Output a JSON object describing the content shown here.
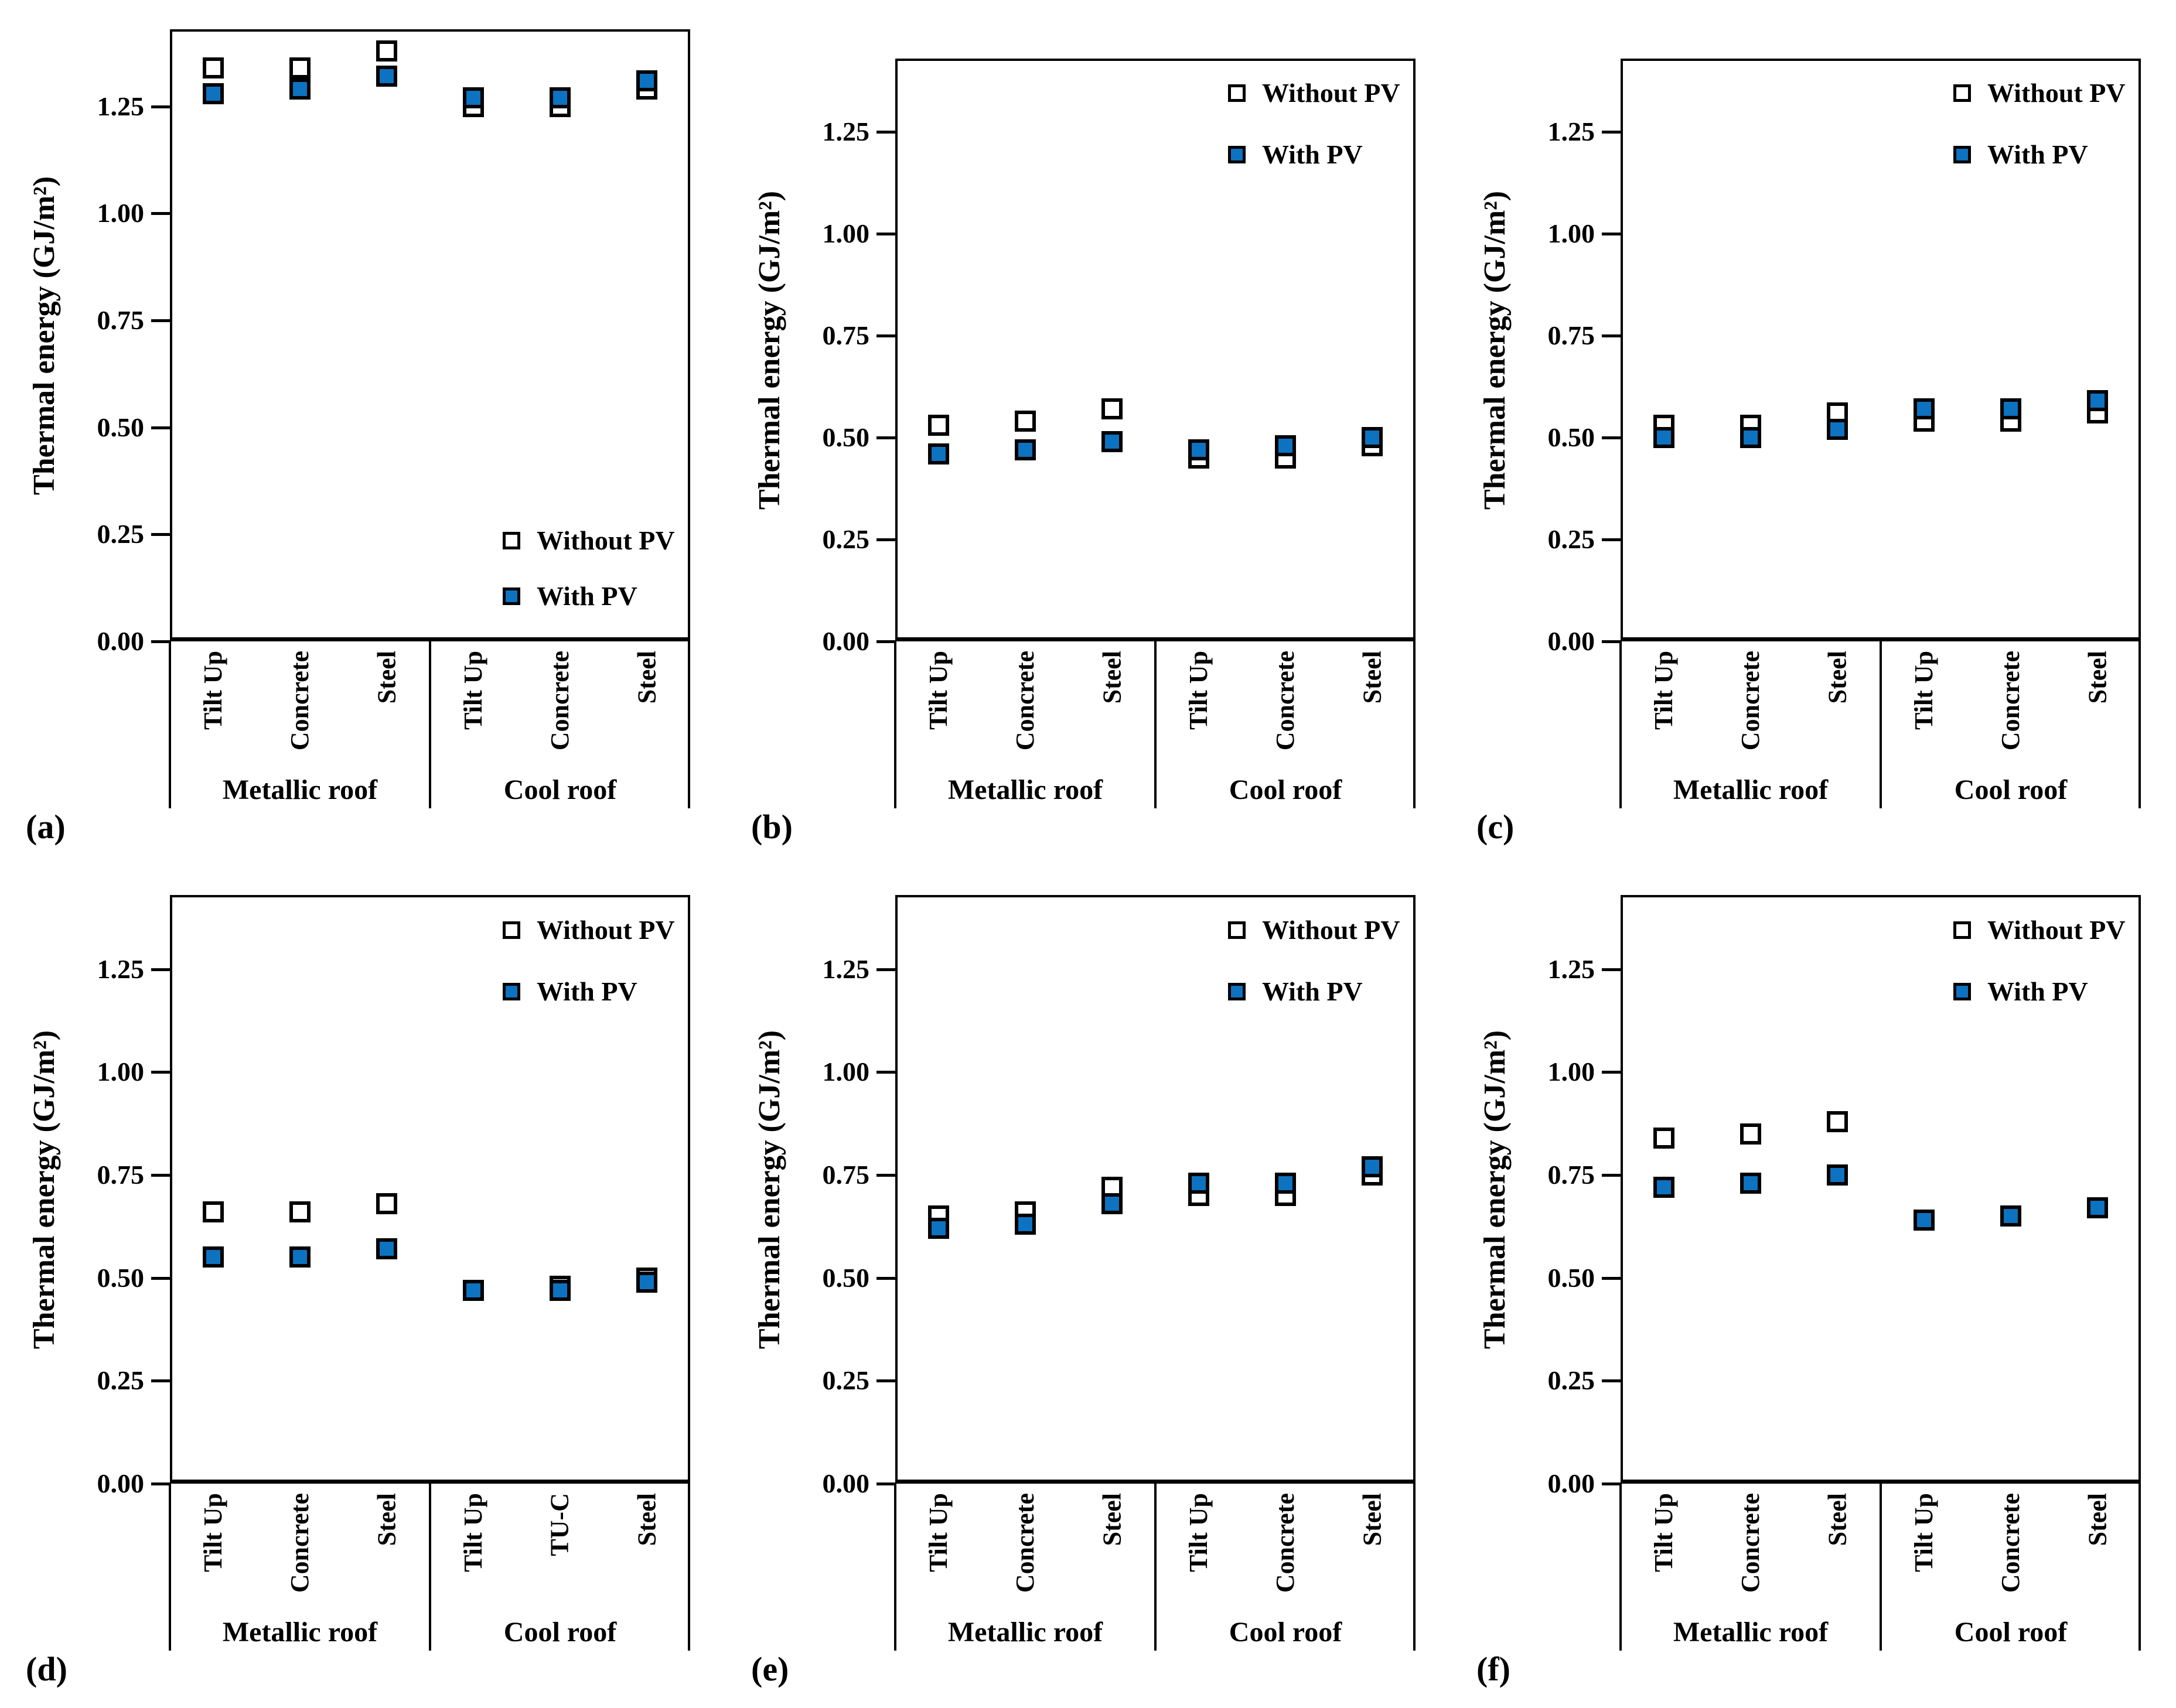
{
  "figure": {
    "y_axis_label": "Thermal energy (GJ/m²)",
    "y_ticks": [
      "0.00",
      "0.25",
      "0.50",
      "0.75",
      "1.00",
      "1.25"
    ],
    "y_tick_values": [
      0,
      0.25,
      0.5,
      0.75,
      1.0,
      1.25
    ],
    "y_max": 1.43,
    "grid": "off",
    "marker_shape": "square",
    "colors": {
      "with_pv_fill": "#0D72C0",
      "without_pv_fill": "#FFFFFF",
      "marker_border": "#000000",
      "axis_color": "#000000",
      "text_color": "#000000",
      "background": "#FFFFFF"
    }
  },
  "chart_data": [
    {
      "id": "a",
      "panel_label": "(a)",
      "type": "scatter",
      "ylabel": "Thermal energy (GJ/m²)",
      "ylim": [
        0,
        1.43
      ],
      "yticks": [
        0,
        0.25,
        0.5,
        0.75,
        1.0,
        1.25
      ],
      "legend_position": "inside-bottom-right",
      "groups": [
        {
          "label": "Metallic roof",
          "categories": [
            "Tilt Up",
            "Concrete",
            "Steel"
          ],
          "series": [
            {
              "name": "Without PV",
              "values": [
                1.34,
                1.34,
                1.38
              ]
            },
            {
              "name": "With PV",
              "values": [
                1.28,
                1.29,
                1.32
              ]
            }
          ]
        },
        {
          "label": "Cool roof",
          "categories": [
            "Tilt Up",
            "Concrete",
            "Steel"
          ],
          "series": [
            {
              "name": "Without PV",
              "values": [
                1.25,
                1.25,
                1.29
              ]
            },
            {
              "name": "With PV",
              "values": [
                1.27,
                1.27,
                1.31
              ]
            }
          ]
        }
      ]
    },
    {
      "id": "b",
      "panel_label": "(b)",
      "type": "scatter",
      "ylabel": "Thermal energy (GJ/m²)",
      "ylim": [
        0,
        1.43
      ],
      "yticks": [
        0,
        0.25,
        0.5,
        0.75,
        1.0,
        1.25
      ],
      "legend_position": "inside-top-right",
      "groups": [
        {
          "label": "Metallic roof",
          "categories": [
            "Tilt Up",
            "Concrete",
            "Steel"
          ],
          "series": [
            {
              "name": "Without PV",
              "values": [
                0.53,
                0.54,
                0.57
              ]
            },
            {
              "name": "With PV",
              "values": [
                0.46,
                0.47,
                0.49
              ]
            }
          ]
        },
        {
          "label": "Cool roof",
          "categories": [
            "Tilt Up",
            "Concrete",
            "Steel"
          ],
          "series": [
            {
              "name": "Without PV",
              "values": [
                0.45,
                0.45,
                0.48
              ]
            },
            {
              "name": "With PV",
              "values": [
                0.47,
                0.48,
                0.5
              ]
            }
          ]
        }
      ]
    },
    {
      "id": "c",
      "panel_label": "(c)",
      "type": "scatter",
      "ylabel": "Thermal energy (GJ/m²)",
      "ylim": [
        0,
        1.43
      ],
      "yticks": [
        0,
        0.25,
        0.5,
        0.75,
        1.0,
        1.25
      ],
      "legend_position": "inside-top-right",
      "groups": [
        {
          "label": "Metallic roof",
          "categories": [
            "Tilt Up",
            "Concrete",
            "Steel"
          ],
          "series": [
            {
              "name": "Without PV",
              "values": [
                0.53,
                0.53,
                0.56
              ]
            },
            {
              "name": "With PV",
              "values": [
                0.5,
                0.5,
                0.52
              ]
            }
          ]
        },
        {
          "label": "Cool roof",
          "categories": [
            "Tilt Up",
            "Concrete",
            "Steel"
          ],
          "series": [
            {
              "name": "Without PV",
              "values": [
                0.54,
                0.54,
                0.56
              ]
            },
            {
              "name": "With PV",
              "values": [
                0.57,
                0.57,
                0.59
              ]
            }
          ]
        }
      ]
    },
    {
      "id": "d",
      "panel_label": "(d)",
      "type": "scatter",
      "ylabel": "Thermal energy (GJ/m²)",
      "ylim": [
        0,
        1.43
      ],
      "yticks": [
        0,
        0.25,
        0.5,
        0.75,
        1.0,
        1.25
      ],
      "legend_position": "inside-top-right",
      "groups": [
        {
          "label": "Metallic roof",
          "categories": [
            "Tilt Up",
            "Concrete",
            "Steel"
          ],
          "series": [
            {
              "name": "Without PV",
              "values": [
                0.66,
                0.66,
                0.68
              ]
            },
            {
              "name": "With PV",
              "values": [
                0.55,
                0.55,
                0.57
              ]
            }
          ]
        },
        {
          "label": "Cool roof",
          "categories": [
            "Tilt Up",
            "TU-C",
            "Steel"
          ],
          "series": [
            {
              "name": "Without PV",
              "values": [
                0.47,
                0.48,
                0.5
              ]
            },
            {
              "name": "With PV",
              "values": [
                0.47,
                0.47,
                0.49
              ]
            }
          ]
        }
      ]
    },
    {
      "id": "e",
      "panel_label": "(e)",
      "type": "scatter",
      "ylabel": "Thermal energy (GJ/m²)",
      "ylim": [
        0,
        1.43
      ],
      "yticks": [
        0,
        0.25,
        0.5,
        0.75,
        1.0,
        1.25
      ],
      "legend_position": "inside-top-right",
      "groups": [
        {
          "label": "Metallic roof",
          "categories": [
            "Tilt Up",
            "Concrete",
            "Steel"
          ],
          "series": [
            {
              "name": "Without PV",
              "values": [
                0.65,
                0.66,
                0.72
              ]
            },
            {
              "name": "With PV",
              "values": [
                0.62,
                0.63,
                0.68
              ]
            }
          ]
        },
        {
          "label": "Cool roof",
          "categories": [
            "Tilt Up",
            "Concrete",
            "Steel"
          ],
          "series": [
            {
              "name": "Without PV",
              "values": [
                0.7,
                0.7,
                0.75
              ]
            },
            {
              "name": "With PV",
              "values": [
                0.73,
                0.73,
                0.77
              ]
            }
          ]
        }
      ]
    },
    {
      "id": "f",
      "panel_label": "(f)",
      "type": "scatter",
      "ylabel": "Thermal energy (GJ/m²)",
      "ylim": [
        0,
        1.43
      ],
      "yticks": [
        0,
        0.25,
        0.5,
        0.75,
        1.0,
        1.25
      ],
      "legend_position": "inside-top-right",
      "groups": [
        {
          "label": "Metallic roof",
          "categories": [
            "Tilt Up",
            "Concrete",
            "Steel"
          ],
          "series": [
            {
              "name": "Without PV",
              "values": [
                0.84,
                0.85,
                0.88
              ]
            },
            {
              "name": "With PV",
              "values": [
                0.72,
                0.73,
                0.75
              ]
            }
          ]
        },
        {
          "label": "Cool roof",
          "categories": [
            "Tilt Up",
            "Concrete",
            "Steel"
          ],
          "series": [
            {
              "name": "Without PV",
              "values": [
                0.64,
                0.65,
                0.67
              ]
            },
            {
              "name": "With PV",
              "values": [
                0.64,
                0.65,
                0.67
              ]
            }
          ]
        }
      ]
    }
  ]
}
